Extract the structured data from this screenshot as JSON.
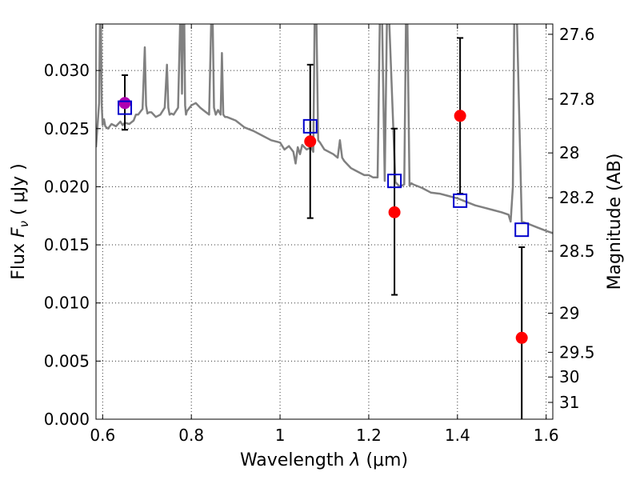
{
  "chart_data": {
    "type": "scatter",
    "xlabel_prefix": "Wavelength  ",
    "xlabel_symbol": "λ",
    "xlabel_unit": " (μm)",
    "ylabel_prefix": "Flux  ",
    "ylabel_symbol": "F",
    "ylabel_subscript": "ν",
    "ylabel_unit": "  ( μJy )",
    "ylabel_right": "Magnitude (AB)",
    "xlim": [
      0.585,
      1.615
    ],
    "ylim": [
      0.0,
      0.034
    ],
    "x_ticks": [
      0.6,
      0.8,
      1.0,
      1.2,
      1.4,
      1.6
    ],
    "x_tick_labels": [
      "0.6",
      "0.8",
      "1",
      "1.2",
      "1.4",
      "1.6"
    ],
    "y_ticks": [
      0.0,
      0.005,
      0.01,
      0.015,
      0.02,
      0.025,
      0.03
    ],
    "y_tick_labels": [
      "0.000",
      "0.005",
      "0.010",
      "0.015",
      "0.020",
      "0.025",
      "0.030"
    ],
    "mag_ticks": [
      27.6,
      27.8,
      28,
      28.2,
      28.5,
      29,
      29.5,
      30,
      31
    ],
    "mag_tick_labels": [
      "27.6",
      "27.8",
      "28",
      "28.2",
      "28.5",
      "29",
      "29.5",
      "30",
      "31"
    ],
    "grid": true,
    "colors": {
      "spectrum": "#808080",
      "observed": "#ff0000",
      "model": "#0000cc",
      "overlap": "#b000b0",
      "errorbar": "#000000"
    },
    "observed": [
      {
        "x": 0.65,
        "y": 0.0272,
        "yerr_low": 0.0249,
        "yerr_high": 0.0296
      },
      {
        "x": 1.068,
        "y": 0.0239,
        "yerr_low": 0.0173,
        "yerr_high": 0.0305
      },
      {
        "x": 1.258,
        "y": 0.0178,
        "yerr_low": 0.0107,
        "yerr_high": 0.025
      },
      {
        "x": 1.406,
        "y": 0.0261,
        "yerr_low": 0.0194,
        "yerr_high": 0.0328
      },
      {
        "x": 1.545,
        "y": 0.007,
        "yerr_low": 0.0,
        "yerr_high": 0.0148
      }
    ],
    "model_points": [
      {
        "x": 0.65,
        "y": 0.0268
      },
      {
        "x": 1.068,
        "y": 0.0252
      },
      {
        "x": 1.258,
        "y": 0.0205
      },
      {
        "x": 1.406,
        "y": 0.0188
      },
      {
        "x": 1.545,
        "y": 0.0163
      }
    ],
    "spectrum": {
      "x": [
        0.585,
        0.592,
        0.594,
        0.596,
        0.598,
        0.6,
        0.603,
        0.606,
        0.612,
        0.62,
        0.63,
        0.64,
        0.645,
        0.65,
        0.66,
        0.67,
        0.675,
        0.68,
        0.69,
        0.695,
        0.698,
        0.701,
        0.705,
        0.71,
        0.72,
        0.73,
        0.74,
        0.745,
        0.748,
        0.751,
        0.755,
        0.76,
        0.77,
        0.775,
        0.777,
        0.779,
        0.781,
        0.784,
        0.786,
        0.788,
        0.79,
        0.8,
        0.81,
        0.82,
        0.83,
        0.84,
        0.845,
        0.848,
        0.851,
        0.855,
        0.86,
        0.866,
        0.869,
        0.872,
        0.876,
        0.88,
        0.9,
        0.92,
        0.94,
        0.96,
        0.98,
        1.0,
        1.01,
        1.02,
        1.03,
        1.035,
        1.04,
        1.045,
        1.05,
        1.06,
        1.07,
        1.075,
        1.078,
        1.082,
        1.086,
        1.09,
        1.1,
        1.12,
        1.13,
        1.135,
        1.14,
        1.145,
        1.15,
        1.16,
        1.17,
        1.18,
        1.19,
        1.2,
        1.21,
        1.22,
        1.225,
        1.23,
        1.236,
        1.241,
        1.246,
        1.26,
        1.27,
        1.28,
        1.284,
        1.287,
        1.292,
        1.296,
        1.3,
        1.32,
        1.34,
        1.36,
        1.38,
        1.4,
        1.42,
        1.44,
        1.46,
        1.48,
        1.5,
        1.515,
        1.52,
        1.525,
        1.528,
        1.531,
        1.534,
        1.545,
        1.56,
        1.58,
        1.6,
        1.615
      ],
      "y": [
        0.0234,
        0.0272,
        0.0345,
        0.0345,
        0.027,
        0.0253,
        0.0258,
        0.0252,
        0.025,
        0.0254,
        0.0252,
        0.0256,
        0.0253,
        0.0255,
        0.0254,
        0.0257,
        0.0262,
        0.0262,
        0.0267,
        0.032,
        0.027,
        0.0263,
        0.0264,
        0.0264,
        0.026,
        0.0262,
        0.0268,
        0.0305,
        0.0268,
        0.0262,
        0.0263,
        0.0262,
        0.0268,
        0.0345,
        0.0345,
        0.028,
        0.0345,
        0.0345,
        0.027,
        0.0262,
        0.0265,
        0.027,
        0.0272,
        0.0268,
        0.0265,
        0.0262,
        0.0345,
        0.0345,
        0.0268,
        0.0262,
        0.0266,
        0.0262,
        0.0315,
        0.0262,
        0.026,
        0.026,
        0.0257,
        0.0251,
        0.0248,
        0.0244,
        0.024,
        0.0238,
        0.0232,
        0.0235,
        0.023,
        0.022,
        0.0234,
        0.0228,
        0.0236,
        0.0232,
        0.0234,
        0.023,
        0.0345,
        0.0345,
        0.024,
        0.0238,
        0.0232,
        0.0228,
        0.0225,
        0.024,
        0.0225,
        0.0222,
        0.022,
        0.0216,
        0.0214,
        0.0212,
        0.021,
        0.021,
        0.0208,
        0.0208,
        0.0345,
        0.0345,
        0.0205,
        0.0345,
        0.0345,
        0.0204,
        0.02,
        0.0202,
        0.0345,
        0.0345,
        0.0201,
        0.0203,
        0.0202,
        0.0199,
        0.0195,
        0.0194,
        0.0192,
        0.019,
        0.0187,
        0.0184,
        0.0182,
        0.018,
        0.0178,
        0.0176,
        0.017,
        0.02,
        0.0345,
        0.0345,
        0.0345,
        0.017,
        0.0168,
        0.0165,
        0.0162,
        0.016
      ]
    }
  }
}
